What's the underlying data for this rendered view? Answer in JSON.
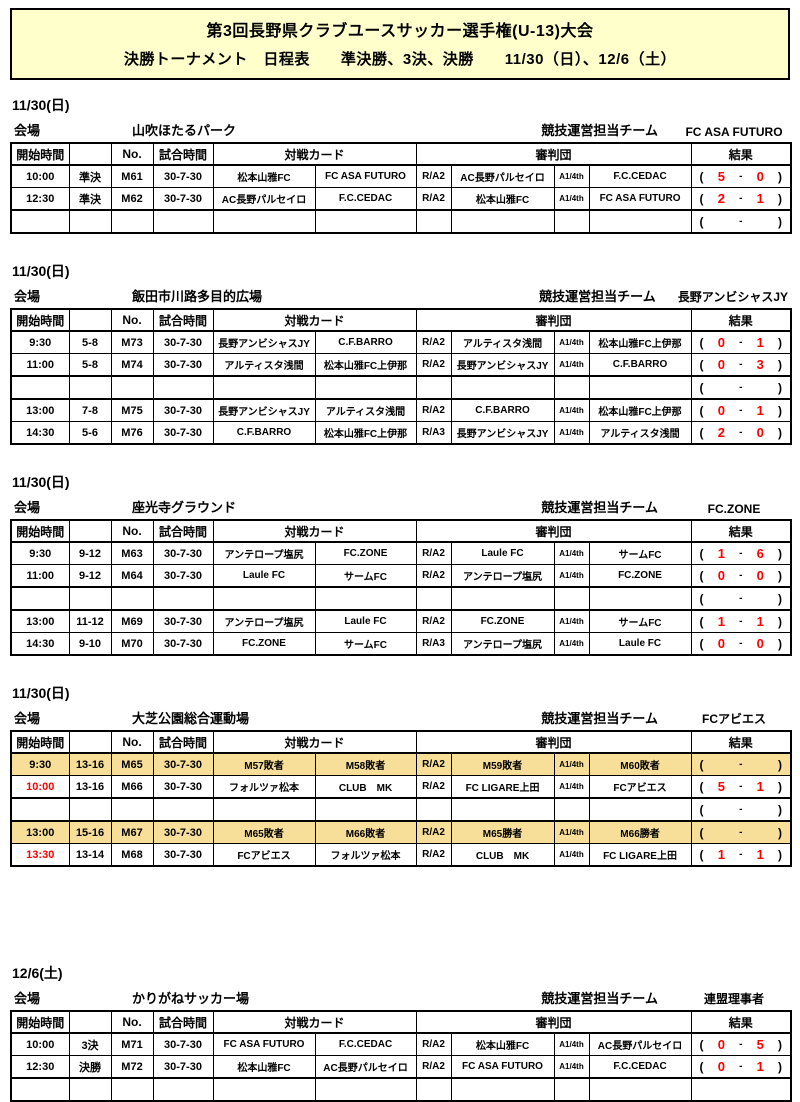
{
  "title": {
    "line1": "第3回長野県クラブユースサッカー選手権(U-13)大会",
    "line2": "決勝トーナメント　日程表　　準決勝、3決、決勝　　11/30（日）、12/6（土）"
  },
  "labels": {
    "venue": "会場",
    "ops_team": "競技運営担当チーム",
    "paren_open": "(",
    "paren_close": ")",
    "dash": "-"
  },
  "table_headers": {
    "start_time": "開始時間",
    "round": "",
    "no": "No.",
    "match_time": "試合時間",
    "match_card": "対戦カード",
    "referees": "審判団",
    "result": "結果"
  },
  "colors": {
    "banner_bg": "#FFFFCC",
    "highlight_bg": "#F7DE99",
    "score_red": "#FF0000"
  },
  "sections": [
    {
      "date": "11/30(日)",
      "venue": "山吹ほたるパーク",
      "ops_team": "FC ASA FUTURO",
      "rows": [
        {
          "time": "10:00",
          "round": "準決",
          "no": "M61",
          "duration": "30-7-30",
          "home": "松本山雅FC",
          "away": "FC ASA FUTURO",
          "ref1_label": "R/A2",
          "ref1": "AC長野パルセイロ",
          "ref2_label": "A1/4th",
          "ref2": "F.C.CEDAC",
          "score_home": "5",
          "score_away": "0",
          "parens": true,
          "highlight": false,
          "time_red": false,
          "sep": false
        },
        {
          "time": "12:30",
          "round": "準決",
          "no": "M62",
          "duration": "30-7-30",
          "home": "AC長野パルセイロ",
          "away": "F.C.CEDAC",
          "ref1_label": "R/A2",
          "ref1": "松本山雅FC",
          "ref2_label": "A1/4th",
          "ref2": "FC ASA FUTURO",
          "score_home": "2",
          "score_away": "1",
          "parens": true,
          "highlight": false,
          "time_red": false,
          "sep": false
        },
        {
          "time": "",
          "round": "",
          "no": "",
          "duration": "",
          "home": "",
          "away": "",
          "ref1_label": "",
          "ref1": "",
          "ref2_label": "",
          "ref2": "",
          "score_home": "",
          "score_away": "",
          "parens": true,
          "highlight": false,
          "time_red": false,
          "sep": true
        }
      ]
    },
    {
      "date": "11/30(日)",
      "venue": "飯田市川路多目的広場",
      "ops_team": "長野アンビシャスJY",
      "rows": [
        {
          "time": "9:30",
          "round": "5-8",
          "no": "M73",
          "duration": "30-7-30",
          "home": "長野アンビシャスJY",
          "away": "C.F.BARRO",
          "ref1_label": "R/A2",
          "ref1": "アルティスタ浅間",
          "ref2_label": "A1/4th",
          "ref2": "松本山雅FC上伊那",
          "score_home": "0",
          "score_away": "1",
          "parens": true,
          "highlight": false,
          "time_red": false,
          "sep": false
        },
        {
          "time": "11:00",
          "round": "5-8",
          "no": "M74",
          "duration": "30-7-30",
          "home": "アルティスタ浅間",
          "away": "松本山雅FC上伊那",
          "ref1_label": "R/A2",
          "ref1": "長野アンビシャスJY",
          "ref2_label": "A1/4th",
          "ref2": "C.F.BARRO",
          "score_home": "0",
          "score_away": "3",
          "parens": true,
          "highlight": false,
          "time_red": false,
          "sep": false
        },
        {
          "time": "",
          "round": "",
          "no": "",
          "duration": "",
          "home": "",
          "away": "",
          "ref1_label": "",
          "ref1": "",
          "ref2_label": "",
          "ref2": "",
          "score_home": "",
          "score_away": "",
          "parens": true,
          "highlight": false,
          "time_red": false,
          "sep": true
        },
        {
          "time": "13:00",
          "round": "7-8",
          "no": "M75",
          "duration": "30-7-30",
          "home": "長野アンビシャスJY",
          "away": "アルティスタ浅間",
          "ref1_label": "R/A2",
          "ref1": "C.F.BARRO",
          "ref2_label": "A1/4th",
          "ref2": "松本山雅FC上伊那",
          "score_home": "0",
          "score_away": "1",
          "parens": true,
          "highlight": false,
          "time_red": false,
          "sep": false
        },
        {
          "time": "14:30",
          "round": "5-6",
          "no": "M76",
          "duration": "30-7-30",
          "home": "C.F.BARRO",
          "away": "松本山雅FC上伊那",
          "ref1_label": "R/A3",
          "ref1": "長野アンビシャスJY",
          "ref2_label": "A1/4th",
          "ref2": "アルティスタ浅間",
          "score_home": "2",
          "score_away": "0",
          "parens": true,
          "highlight": false,
          "time_red": false,
          "sep": false
        }
      ]
    },
    {
      "date": "11/30(日)",
      "venue": "座光寺グラウンド",
      "ops_team": "FC.ZONE",
      "rows": [
        {
          "time": "9:30",
          "round": "9-12",
          "no": "M63",
          "duration": "30-7-30",
          "home": "アンテロープ塩尻",
          "away": "FC.ZONE",
          "ref1_label": "R/A2",
          "ref1": "Laule FC",
          "ref2_label": "A1/4th",
          "ref2": "サームFC",
          "score_home": "1",
          "score_away": "6",
          "parens": true,
          "highlight": false,
          "time_red": false,
          "sep": false
        },
        {
          "time": "11:00",
          "round": "9-12",
          "no": "M64",
          "duration": "30-7-30",
          "home": "Laule FC",
          "away": "サームFC",
          "ref1_label": "R/A2",
          "ref1": "アンテロープ塩尻",
          "ref2_label": "A1/4th",
          "ref2": "FC.ZONE",
          "score_home": "0",
          "score_away": "0",
          "parens": true,
          "highlight": false,
          "time_red": false,
          "sep": false
        },
        {
          "time": "",
          "round": "",
          "no": "",
          "duration": "",
          "home": "",
          "away": "",
          "ref1_label": "",
          "ref1": "",
          "ref2_label": "",
          "ref2": "",
          "score_home": "",
          "score_away": "",
          "parens": true,
          "highlight": false,
          "time_red": false,
          "sep": true
        },
        {
          "time": "13:00",
          "round": "11-12",
          "no": "M69",
          "duration": "30-7-30",
          "home": "アンテロープ塩尻",
          "away": "Laule FC",
          "ref1_label": "R/A2",
          "ref1": "FC.ZONE",
          "ref2_label": "A1/4th",
          "ref2": "サームFC",
          "score_home": "1",
          "score_away": "1",
          "parens": true,
          "highlight": false,
          "time_red": false,
          "sep": false
        },
        {
          "time": "14:30",
          "round": "9-10",
          "no": "M70",
          "duration": "30-7-30",
          "home": "FC.ZONE",
          "away": "サームFC",
          "ref1_label": "R/A3",
          "ref1": "アンテロープ塩尻",
          "ref2_label": "A1/4th",
          "ref2": "Laule FC",
          "score_home": "0",
          "score_away": "0",
          "parens": true,
          "highlight": false,
          "time_red": false,
          "sep": false
        }
      ]
    },
    {
      "date": "11/30(日)",
      "venue": "大芝公園総合運動場",
      "ops_team": "FCアビエス",
      "rows": [
        {
          "time": "9:30",
          "round": "13-16",
          "no": "M65",
          "duration": "30-7-30",
          "home": "M57敗者",
          "away": "M58敗者",
          "ref1_label": "R/A2",
          "ref1": "M59敗者",
          "ref2_label": "A1/4th",
          "ref2": "M60敗者",
          "score_home": "",
          "score_away": "",
          "parens": true,
          "highlight": true,
          "time_red": false,
          "sep": false
        },
        {
          "time": "10:00",
          "round": "13-16",
          "no": "M66",
          "duration": "30-7-30",
          "home": "フォルツァ松本",
          "away": "CLUB　MK",
          "ref1_label": "R/A2",
          "ref1": "FC LIGARE上田",
          "ref2_label": "A1/4th",
          "ref2": "FCアビエス",
          "score_home": "5",
          "score_away": "1",
          "parens": true,
          "highlight": false,
          "time_red": true,
          "sep": false
        },
        {
          "time": "",
          "round": "",
          "no": "",
          "duration": "",
          "home": "",
          "away": "",
          "ref1_label": "",
          "ref1": "",
          "ref2_label": "",
          "ref2": "",
          "score_home": "",
          "score_away": "",
          "parens": true,
          "highlight": false,
          "time_red": false,
          "sep": true
        },
        {
          "time": "13:00",
          "round": "15-16",
          "no": "M67",
          "duration": "30-7-30",
          "home": "M65敗者",
          "away": "M66敗者",
          "ref1_label": "R/A2",
          "ref1": "M65勝者",
          "ref2_label": "A1/4th",
          "ref2": "M66勝者",
          "score_home": "",
          "score_away": "",
          "parens": true,
          "highlight": true,
          "time_red": false,
          "sep": false
        },
        {
          "time": "13:30",
          "round": "13-14",
          "no": "M68",
          "duration": "30-7-30",
          "home": "FCアビエス",
          "away": "フォルツァ松本",
          "ref1_label": "R/A2",
          "ref1": "CLUB　MK",
          "ref2_label": "A1/4th",
          "ref2": "FC LIGARE上田",
          "score_home": "1",
          "score_away": "1",
          "parens": true,
          "highlight": false,
          "time_red": true,
          "sep": false
        }
      ]
    },
    {
      "date": "12/6(土)",
      "venue": "かりがねサッカー場",
      "ops_team": "連盟理事者",
      "rows": [
        {
          "time": "10:00",
          "round": "3決",
          "no": "M71",
          "duration": "30-7-30",
          "home": "FC ASA FUTURO",
          "away": "F.C.CEDAC",
          "ref1_label": "R/A2",
          "ref1": "松本山雅FC",
          "ref2_label": "A1/4th",
          "ref2": "AC長野パルセイロ",
          "score_home": "0",
          "score_away": "5",
          "parens": true,
          "highlight": false,
          "time_red": false,
          "sep": false
        },
        {
          "time": "12:30",
          "round": "決勝",
          "no": "M72",
          "duration": "30-7-30",
          "home": "松本山雅FC",
          "away": "AC長野パルセイロ",
          "ref1_label": "R/A2",
          "ref1": "FC ASA FUTURO",
          "ref2_label": "A1/4th",
          "ref2": "F.C.CEDAC",
          "score_home": "0",
          "score_away": "1",
          "parens": true,
          "highlight": false,
          "time_red": false,
          "sep": false
        },
        {
          "time": "",
          "round": "",
          "no": "",
          "duration": "",
          "home": "",
          "away": "",
          "ref1_label": "",
          "ref1": "",
          "ref2_label": "",
          "ref2": "",
          "score_home": "",
          "score_away": "",
          "parens": false,
          "highlight": false,
          "time_red": false,
          "sep": true
        }
      ]
    }
  ]
}
